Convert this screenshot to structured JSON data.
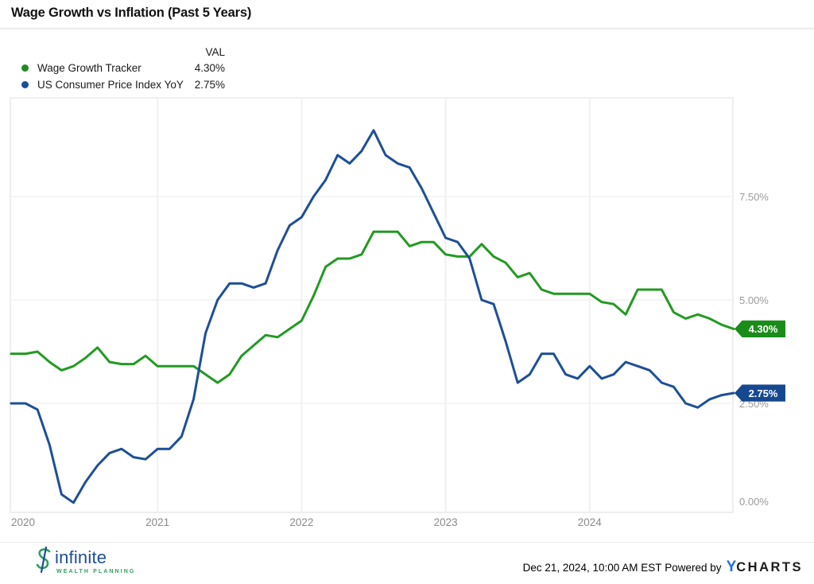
{
  "header": {
    "title": "Wage Growth vs Inflation (Past 5 Years)"
  },
  "legend": {
    "val_header": "VAL",
    "items": [
      {
        "label": "Wage Growth Tracker",
        "value": "4.30%",
        "color": "#1e8c1e"
      },
      {
        "label": "US Consumer Price Index YoY",
        "value": "2.75%",
        "color": "#1d4f97"
      }
    ]
  },
  "chart_data": {
    "type": "line",
    "title": "Wage Growth vs Inflation (Past 5 Years)",
    "x_unit": "month",
    "months": [
      "Jan 2020",
      "Feb 2020",
      "Mar 2020",
      "Apr 2020",
      "May 2020",
      "Jun 2020",
      "Jul 2020",
      "Aug 2020",
      "Sep 2020",
      "Oct 2020",
      "Nov 2020",
      "Dec 2020",
      "Jan 2021",
      "Feb 2021",
      "Mar 2021",
      "Apr 2021",
      "May 2021",
      "Jun 2021",
      "Jul 2021",
      "Aug 2021",
      "Sep 2021",
      "Oct 2021",
      "Nov 2021",
      "Dec 2021",
      "Jan 2022",
      "Feb 2022",
      "Mar 2022",
      "Apr 2022",
      "May 2022",
      "Jun 2022",
      "Jul 2022",
      "Aug 2022",
      "Sep 2022",
      "Oct 2022",
      "Nov 2022",
      "Dec 2022",
      "Jan 2023",
      "Feb 2023",
      "Mar 2023",
      "Apr 2023",
      "May 2023",
      "Jun 2023",
      "Jul 2023",
      "Aug 2023",
      "Sep 2023",
      "Oct 2023",
      "Nov 2023",
      "Dec 2023",
      "Jan 2024",
      "Feb 2024",
      "Mar 2024",
      "Apr 2024",
      "May 2024",
      "Jun 2024",
      "Jul 2024",
      "Aug 2024",
      "Sep 2024",
      "Oct 2024",
      "Nov 2024",
      "Dec 2024"
    ],
    "series": [
      {
        "id": "wage-growth-tracker",
        "name": "Wage Growth Tracker",
        "color": "#229a22",
        "values": [
          3.7,
          3.75,
          3.5,
          3.3,
          3.4,
          3.6,
          3.85,
          3.5,
          3.45,
          3.45,
          3.65,
          3.4,
          3.4,
          3.4,
          3.4,
          3.2,
          3.0,
          3.2,
          3.65,
          3.9,
          4.15,
          4.1,
          4.3,
          4.5,
          5.1,
          5.8,
          6.0,
          6.0,
          6.1,
          6.65,
          6.65,
          6.65,
          6.3,
          6.4,
          6.4,
          6.1,
          6.05,
          6.05,
          6.35,
          6.05,
          5.9,
          5.55,
          5.65,
          5.25,
          5.15,
          5.15,
          5.15,
          5.15,
          4.95,
          4.9,
          4.65,
          5.25,
          5.25,
          5.25,
          4.7,
          4.55,
          4.65,
          4.55,
          4.4,
          4.3
        ]
      },
      {
        "id": "us-cpi-yoy",
        "name": "US Consumer Price Index YoY",
        "color": "#1d4f97",
        "values": [
          2.5,
          2.35,
          1.5,
          0.3,
          0.1,
          0.6,
          1.0,
          1.3,
          1.4,
          1.2,
          1.15,
          1.4,
          1.4,
          1.7,
          2.6,
          4.2,
          5.0,
          5.4,
          5.4,
          5.3,
          5.4,
          6.2,
          6.8,
          7.0,
          7.5,
          7.9,
          8.5,
          8.3,
          8.6,
          9.1,
          8.5,
          8.3,
          8.2,
          7.7,
          7.1,
          6.5,
          6.4,
          6.0,
          5.0,
          4.9,
          4.0,
          3.0,
          3.2,
          3.7,
          3.7,
          3.2,
          3.1,
          3.4,
          3.1,
          3.2,
          3.5,
          3.4,
          3.3,
          3.0,
          2.9,
          2.5,
          2.4,
          2.6,
          2.7,
          2.75
        ]
      }
    ],
    "yticks": [
      0,
      2.5,
      5,
      7.5
    ],
    "ytick_labels": [
      "0.00%",
      "2.50%",
      "5.00%",
      "7.50%"
    ],
    "xtick_labels": [
      "2020",
      "2021",
      "2022",
      "2023",
      "2024"
    ],
    "ylim": [
      -0.15,
      9.9
    ],
    "grid": true,
    "legend_position": "top-left",
    "end_labels": [
      {
        "series": "wage-growth-tracker",
        "label": "4.30%",
        "value": 4.3,
        "color": "#1a8c1a"
      },
      {
        "series": "us-cpi-yoy",
        "label": "2.75%",
        "value": 2.75,
        "color": "#16488f"
      }
    ]
  },
  "footer": {
    "brand": {
      "name": "infinite",
      "tagline": "WEALTH PLANNING"
    },
    "timestamp": "Dec 21, 2024, 10:00 AM EST",
    "powered_by": "Powered by",
    "provider": {
      "prefix": "Y",
      "rest": "CHARTS"
    }
  }
}
